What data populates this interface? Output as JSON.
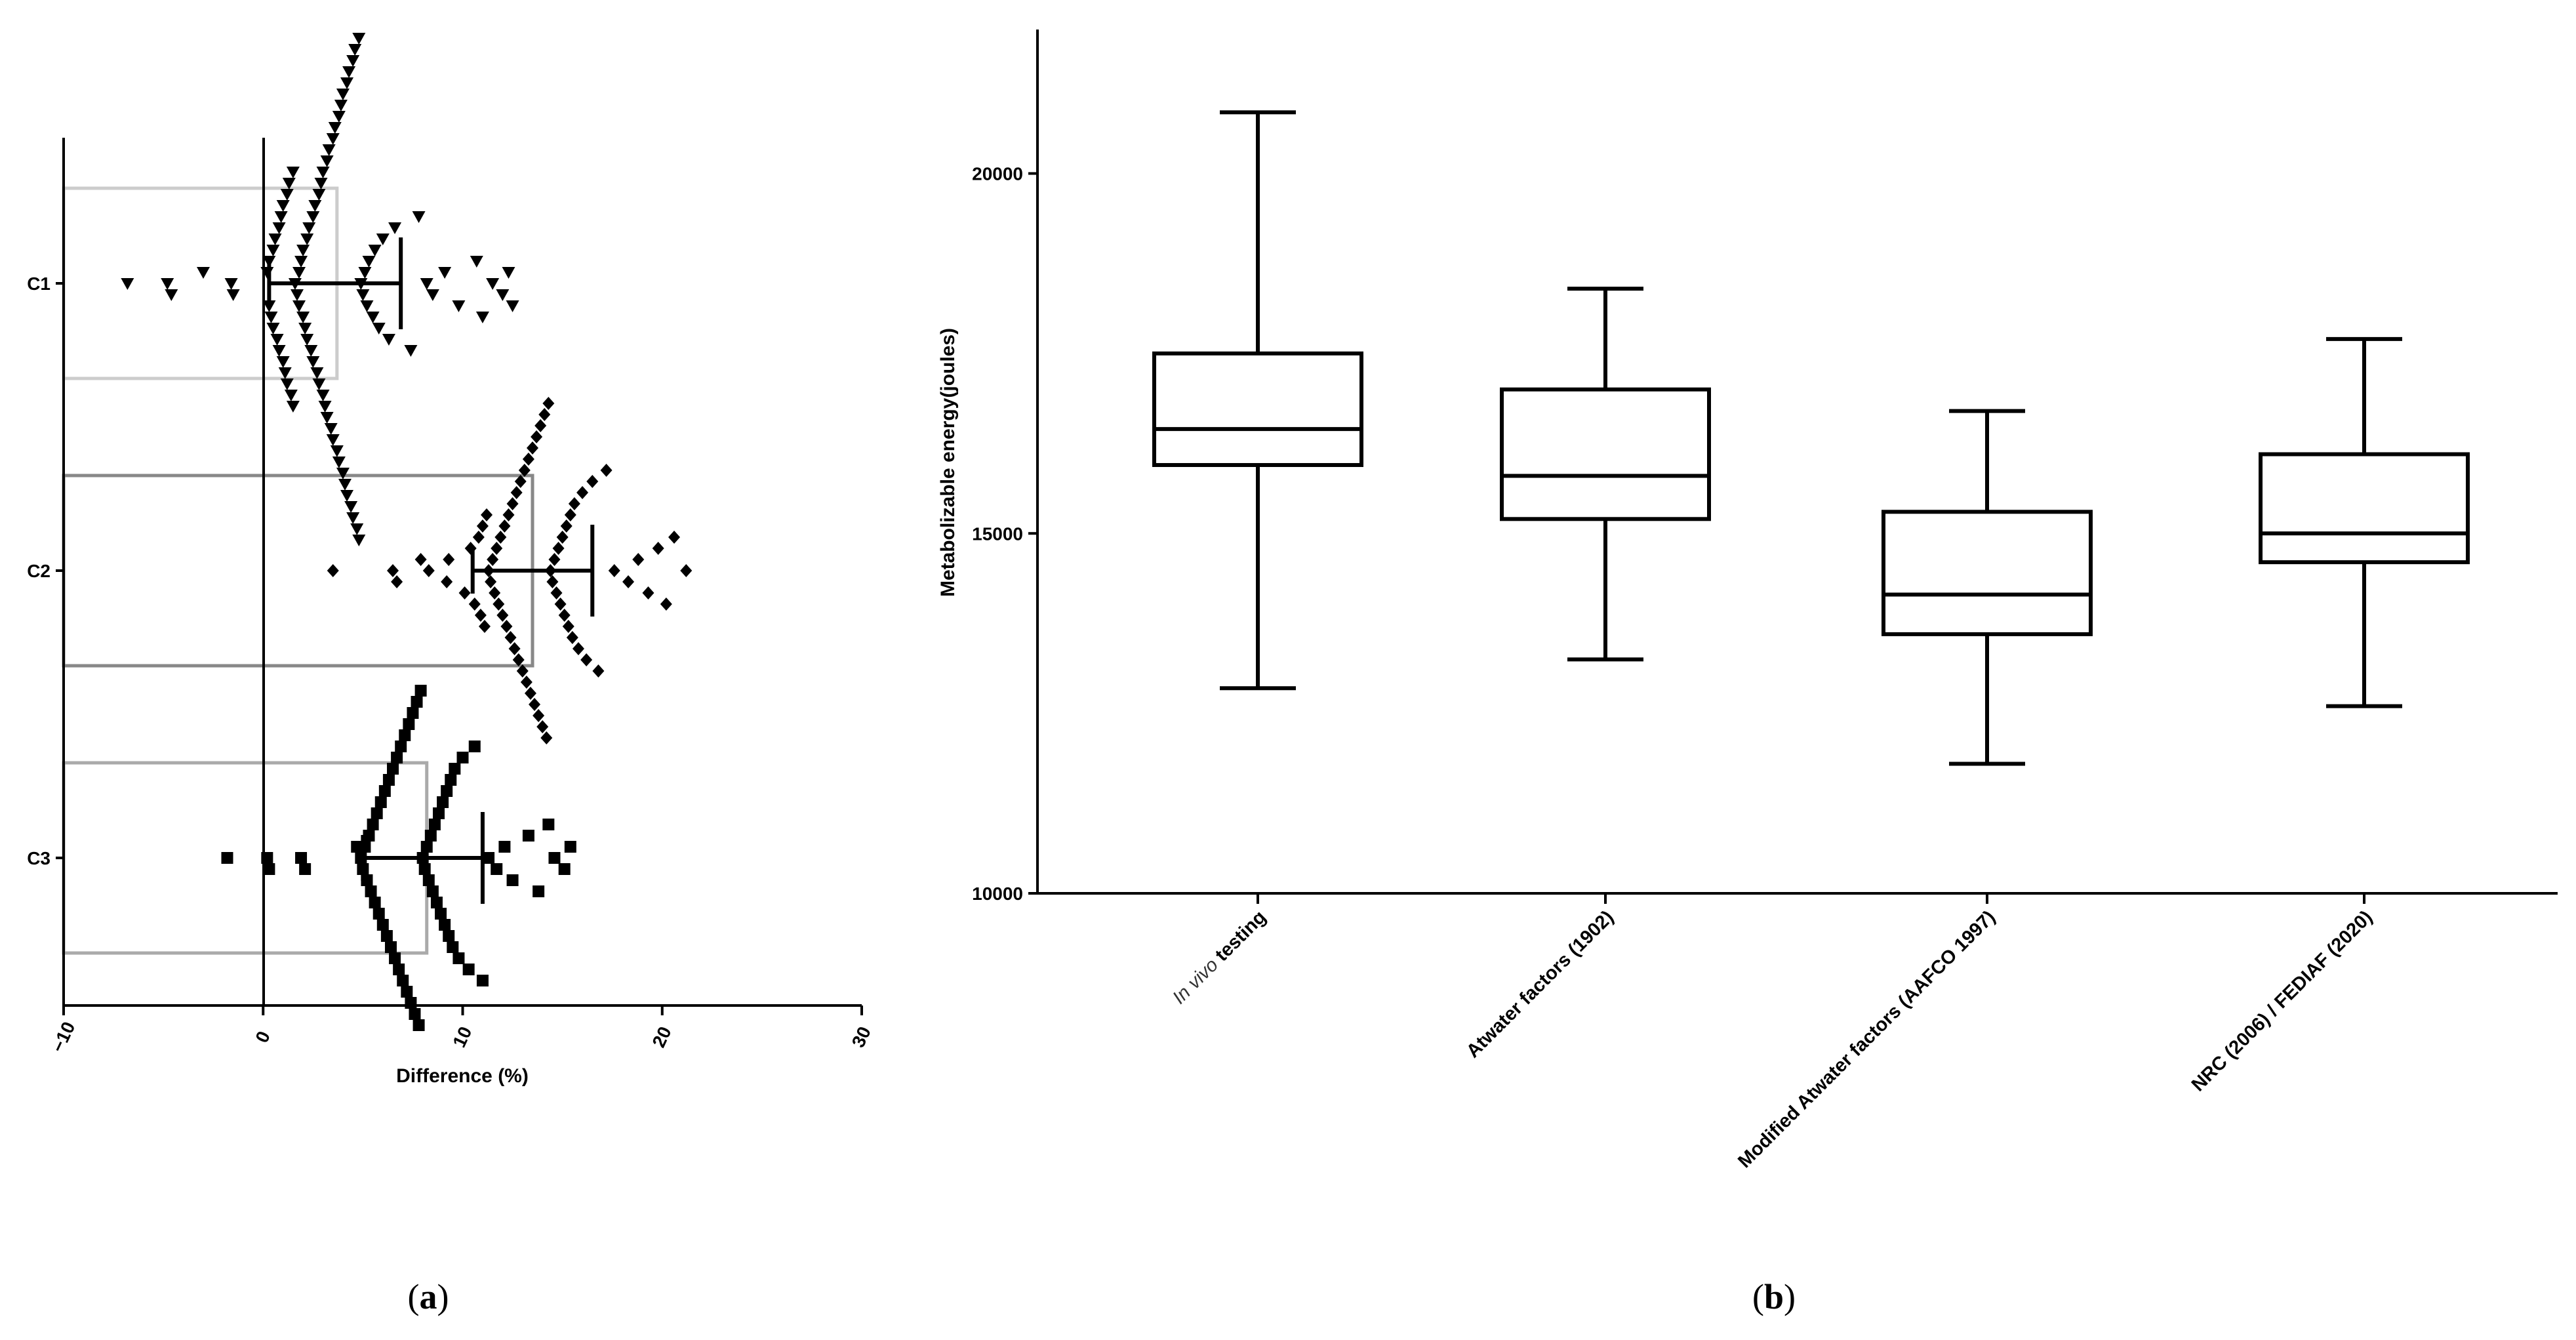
{
  "figure": {
    "panel_a_label": "a",
    "panel_b_label": "b"
  },
  "chart_data": [
    {
      "type": "scatter",
      "panel": "a",
      "orientation": "horizontal",
      "xlabel": "Difference (%)",
      "ylabel": "",
      "xlim": [
        -10,
        30
      ],
      "xticks": [
        "−10",
        "0",
        "10",
        "20",
        "30"
      ],
      "categories": [
        "C1",
        "C2",
        "C3"
      ],
      "series": [
        {
          "category": "C1",
          "marker": "triangle-down",
          "bar": {
            "value": 3.7,
            "color": "#cccccc"
          },
          "errorbar": {
            "mean": 3.5,
            "low": 0.3,
            "high": 6.9
          },
          "points": [
            -6.8,
            -4.8,
            -4.6,
            -3.0,
            -1.6,
            -1.5,
            0.2,
            0.3,
            0.3,
            0.4,
            0.5,
            0.5,
            0.6,
            0.7,
            0.8,
            0.8,
            0.9,
            1.0,
            1.0,
            1.1,
            1.2,
            1.2,
            1.3,
            1.4,
            1.5,
            1.5,
            1.6,
            1.7,
            1.8,
            1.8,
            1.9,
            2.0,
            2.0,
            2.1,
            2.2,
            2.2,
            2.3,
            2.4,
            2.5,
            2.5,
            2.6,
            2.7,
            2.8,
            2.8,
            2.9,
            3.0,
            3.0,
            3.1,
            3.2,
            3.2,
            3.3,
            3.4,
            3.5,
            3.5,
            3.6,
            3.7,
            3.8,
            3.8,
            3.9,
            4.0,
            4.0,
            4.1,
            4.2,
            4.2,
            4.3,
            4.4,
            4.5,
            4.5,
            4.6,
            4.7,
            4.8,
            4.8,
            4.9,
            5.0,
            5.1,
            5.2,
            5.3,
            5.5,
            5.6,
            5.8,
            6.0,
            6.3,
            6.6,
            7.4,
            7.8,
            8.2,
            8.5,
            9.1,
            9.8,
            10.7,
            11.0,
            11.5,
            12.0,
            12.3,
            12.5
          ]
        },
        {
          "category": "C2",
          "marker": "diamond",
          "bar": {
            "value": 13.5,
            "color": "#888888"
          },
          "errorbar": {
            "mean": 13.2,
            "low": 10.5,
            "high": 16.5
          },
          "points": [
            3.5,
            6.5,
            6.7,
            7.9,
            8.3,
            9.2,
            9.3,
            10.1,
            10.4,
            10.6,
            10.8,
            10.9,
            11.0,
            11.1,
            11.2,
            11.3,
            11.4,
            11.5,
            11.6,
            11.7,
            11.8,
            11.9,
            12.0,
            12.1,
            12.2,
            12.3,
            12.4,
            12.5,
            12.6,
            12.7,
            12.8,
            12.9,
            13.0,
            13.1,
            13.2,
            13.3,
            13.4,
            13.5,
            13.6,
            13.7,
            13.8,
            13.9,
            14.0,
            14.1,
            14.2,
            14.3,
            14.4,
            14.5,
            14.6,
            14.7,
            14.8,
            14.9,
            15.0,
            15.1,
            15.2,
            15.3,
            15.4,
            15.5,
            15.6,
            15.8,
            16.0,
            16.2,
            16.5,
            16.8,
            17.2,
            17.6,
            18.3,
            18.8,
            19.3,
            19.8,
            20.2,
            20.6,
            21.2
          ]
        },
        {
          "category": "C3",
          "marker": "square",
          "bar": {
            "value": 8.2,
            "color": "#aaaaaa"
          },
          "errorbar": {
            "mean": 8.0,
            "low": 5.0,
            "high": 11.0
          },
          "points": [
            -1.8,
            0.2,
            0.3,
            1.9,
            2.1,
            4.7,
            4.9,
            5.0,
            5.1,
            5.2,
            5.3,
            5.4,
            5.5,
            5.6,
            5.7,
            5.8,
            5.9,
            6.0,
            6.1,
            6.2,
            6.3,
            6.4,
            6.5,
            6.6,
            6.7,
            6.8,
            6.9,
            7.0,
            7.1,
            7.2,
            7.3,
            7.4,
            7.5,
            7.6,
            7.7,
            7.8,
            7.9,
            8.0,
            8.1,
            8.2,
            8.3,
            8.4,
            8.5,
            8.6,
            8.7,
            8.8,
            8.9,
            9.0,
            9.1,
            9.2,
            9.3,
            9.4,
            9.5,
            9.6,
            9.8,
            10.0,
            10.3,
            10.6,
            11.0,
            11.3,
            11.7,
            12.1,
            12.5,
            13.3,
            13.8,
            14.3,
            14.6,
            15.1,
            15.4
          ]
        }
      ]
    },
    {
      "type": "box",
      "panel": "b",
      "xlabel": "",
      "ylabel": "Metabolizable energy(joules)",
      "ylim": [
        10000,
        22000
      ],
      "yticks": [
        "10000",
        "15000",
        "20000"
      ],
      "categories": [
        {
          "italic": "In vivo",
          "rest": " testing"
        },
        {
          "italic": "",
          "rest": "Atwater factors (1902)"
        },
        {
          "italic": "",
          "rest": "Modified Atwater factors (AAFCO 1997)"
        },
        {
          "italic": "",
          "rest": "NRC (2006) / FEDIAF (2020)"
        }
      ],
      "boxes": [
        {
          "min": 12850,
          "q1": 15950,
          "median": 16450,
          "q3": 17500,
          "max": 20850
        },
        {
          "min": 13250,
          "q1": 15200,
          "median": 15800,
          "q3": 17000,
          "max": 18400
        },
        {
          "min": 11800,
          "q1": 13600,
          "median": 14150,
          "q3": 15300,
          "max": 16700
        },
        {
          "min": 12600,
          "q1": 14600,
          "median": 15000,
          "q3": 16100,
          "max": 17700
        }
      ]
    }
  ]
}
